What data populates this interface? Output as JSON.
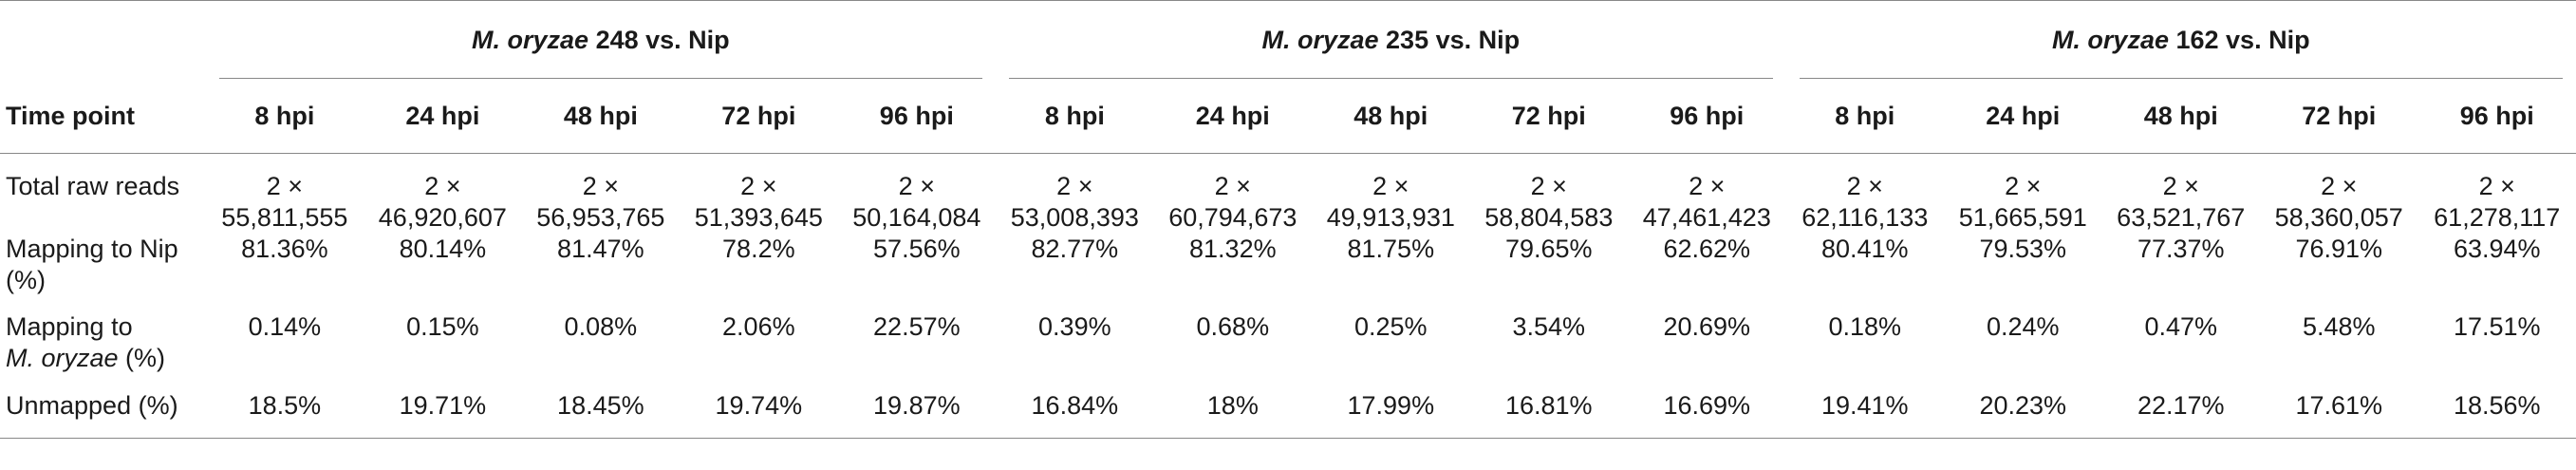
{
  "table": {
    "groups": [
      {
        "species": "M. oryzae",
        "strain_suffix": " 248 vs. Nip"
      },
      {
        "species": "M. oryzae",
        "strain_suffix": " 235 vs. Nip"
      },
      {
        "species": "M. oryzae",
        "strain_suffix": " 162 vs. Nip"
      }
    ],
    "row_header_label": "Time point",
    "time_points": [
      "8 hpi",
      "24 hpi",
      "48 hpi",
      "72 hpi",
      "96 hpi",
      "8 hpi",
      "24 hpi",
      "48 hpi",
      "72 hpi",
      "96 hpi",
      "8 hpi",
      "24 hpi",
      "48 hpi",
      "72 hpi",
      "96 hpi"
    ],
    "rows": [
      {
        "label": "Total raw reads",
        "label_italic": "",
        "label_suffix": "",
        "values_top": [
          "2 ×",
          "2 ×",
          "2 ×",
          "2 ×",
          "2 ×",
          "2 ×",
          "2 ×",
          "2 ×",
          "2 ×",
          "2 ×",
          "2 ×",
          "2 ×",
          "2 ×",
          "2 ×",
          "2 ×"
        ],
        "values": [
          "55,811,555",
          "46,920,607",
          "56,953,765",
          "51,393,645",
          "50,164,084",
          "53,008,393",
          "60,794,673",
          "49,913,931",
          "58,804,583",
          "47,461,423",
          "62,116,133",
          "51,665,591",
          "63,521,767",
          "58,360,057",
          "61,278,117"
        ]
      },
      {
        "label": "Mapping to Nip",
        "label_line2": "(%)",
        "values": [
          "81.36%",
          "80.14%",
          "81.47%",
          "78.2%",
          "57.56%",
          "82.77%",
          "81.32%",
          "81.75%",
          "79.65%",
          "62.62%",
          "80.41%",
          "79.53%",
          "77.37%",
          "76.91%",
          "63.94%"
        ]
      },
      {
        "label": "Mapping to",
        "label_line2_italic": "M. oryzae",
        "label_line2_suffix": " (%)",
        "values": [
          "0.14%",
          "0.15%",
          "0.08%",
          "2.06%",
          "22.57%",
          "0.39%",
          "0.68%",
          "0.25%",
          "3.54%",
          "20.69%",
          "0.18%",
          "0.24%",
          "0.47%",
          "5.48%",
          "17.51%"
        ]
      },
      {
        "label": "Unmapped (%)",
        "values": [
          "18.5%",
          "19.71%",
          "18.45%",
          "19.74%",
          "19.87%",
          "16.84%",
          "18%",
          "17.99%",
          "16.81%",
          "16.69%",
          "19.41%",
          "20.23%",
          "22.17%",
          "17.61%",
          "18.56%"
        ]
      }
    ]
  }
}
